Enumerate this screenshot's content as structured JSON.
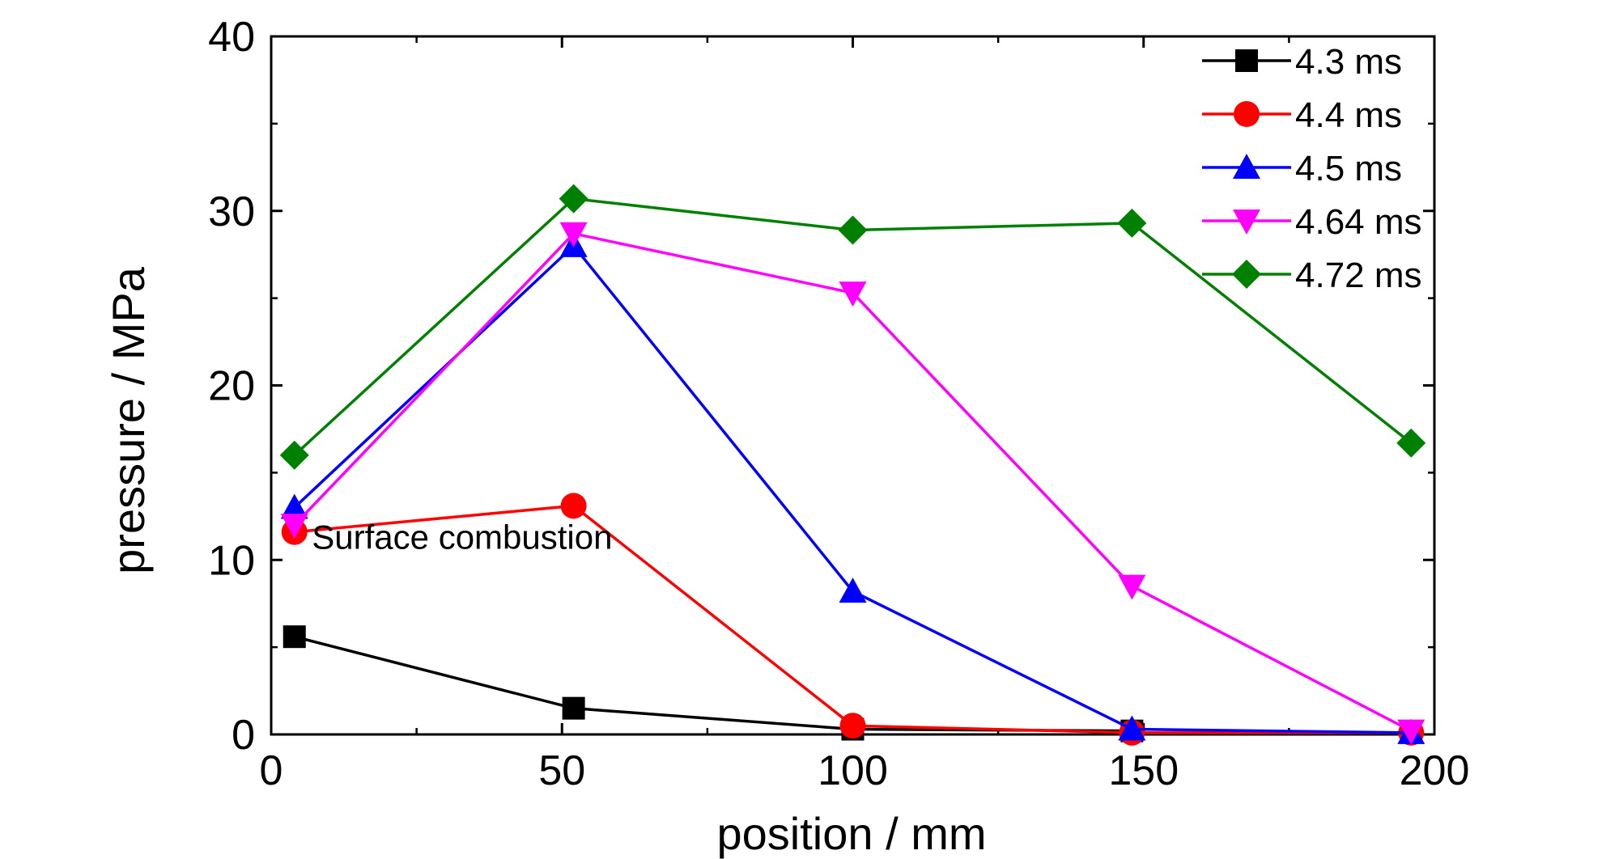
{
  "chart_data": {
    "type": "line",
    "xlabel": "position / mm",
    "ylabel": "pressure / MPa",
    "xlim": [
      0,
      200
    ],
    "ylim": [
      0,
      40
    ],
    "xticks": [
      0,
      50,
      100,
      150,
      200
    ],
    "yticks": [
      0,
      10,
      20,
      30,
      40
    ],
    "grid": false,
    "legend_position": "top-right",
    "annotations": [
      {
        "text": "Surface combustion",
        "x": 7,
        "y": 11
      }
    ],
    "series": [
      {
        "name": "4.3 ms",
        "color": "#000000",
        "marker": "square",
        "x": [
          4,
          52,
          100,
          148
        ],
        "y": [
          5.6,
          1.5,
          0.3,
          0.2
        ]
      },
      {
        "name": "4.4 ms",
        "color": "#ff0000",
        "marker": "circle",
        "x": [
          4,
          52,
          100,
          148,
          196
        ],
        "y": [
          11.6,
          13.1,
          0.5,
          0.1,
          0.1
        ]
      },
      {
        "name": "4.5 ms",
        "color": "#0000ff",
        "marker": "triangle-up",
        "x": [
          4,
          52,
          100,
          148,
          196
        ],
        "y": [
          13.0,
          28.0,
          8.2,
          0.3,
          0.1
        ]
      },
      {
        "name": "4.64 ms",
        "color": "#ff00ff",
        "marker": "triangle-down",
        "x": [
          4,
          52,
          100,
          148,
          196
        ],
        "y": [
          12.0,
          28.7,
          25.3,
          8.5,
          0.2
        ]
      },
      {
        "name": "4.72 ms",
        "color": "#008000",
        "marker": "diamond",
        "x": [
          4,
          52,
          100,
          148,
          196
        ],
        "y": [
          16.0,
          30.7,
          28.9,
          29.3,
          16.7
        ]
      }
    ]
  }
}
